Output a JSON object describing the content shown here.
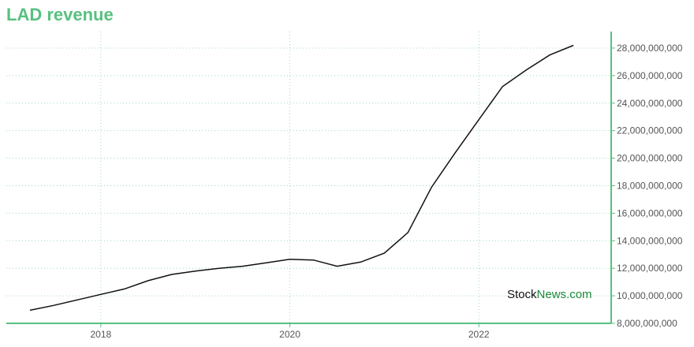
{
  "title": "LAD revenue",
  "watermark": {
    "part1": "Stock",
    "part2": "News.com"
  },
  "colors": {
    "title": "#58c080",
    "axis": "#58c080",
    "grid": "#9fd8c4",
    "line": "#111111",
    "watermark_accent": "#1a8a3a"
  },
  "chart_data": {
    "type": "line",
    "title": "LAD revenue",
    "xlabel": "",
    "ylabel": "",
    "x_ticks": [
      "2018",
      "2020",
      "2022"
    ],
    "y_ticks": [
      "8,000,000,000",
      "10,000,000,000",
      "12,000,000,000",
      "14,000,000,000",
      "16,000,000,000",
      "18,000,000,000",
      "20,000,000,000",
      "22,000,000,000",
      "24,000,000,000",
      "26,000,000,000",
      "28,000,000,000"
    ],
    "xlim": [
      2017.0,
      2023.4
    ],
    "ylim": [
      8000000000,
      29200000000
    ],
    "grid": true,
    "y_axis_side": "right",
    "series": [
      {
        "x": [
          2017.25,
          2017.5,
          2017.75,
          2018.0,
          2018.25,
          2018.5,
          2018.75,
          2019.0,
          2019.25,
          2019.5,
          2019.75,
          2020.0,
          2020.25,
          2020.5,
          2020.75,
          2021.0,
          2021.25,
          2021.5,
          2021.75,
          2022.0,
          2022.25,
          2022.5,
          2022.75,
          2023.0
        ],
        "y": [
          8950000000,
          9300000000,
          9700000000,
          10100000000,
          10500000000,
          11100000000,
          11550000000,
          11800000000,
          12000000000,
          12150000000,
          12400000000,
          12650000000,
          12600000000,
          12150000000,
          12450000000,
          13100000000,
          14600000000,
          17900000000,
          20400000000,
          22800000000,
          25200000000,
          26400000000,
          27500000000,
          28200000000
        ]
      }
    ]
  }
}
